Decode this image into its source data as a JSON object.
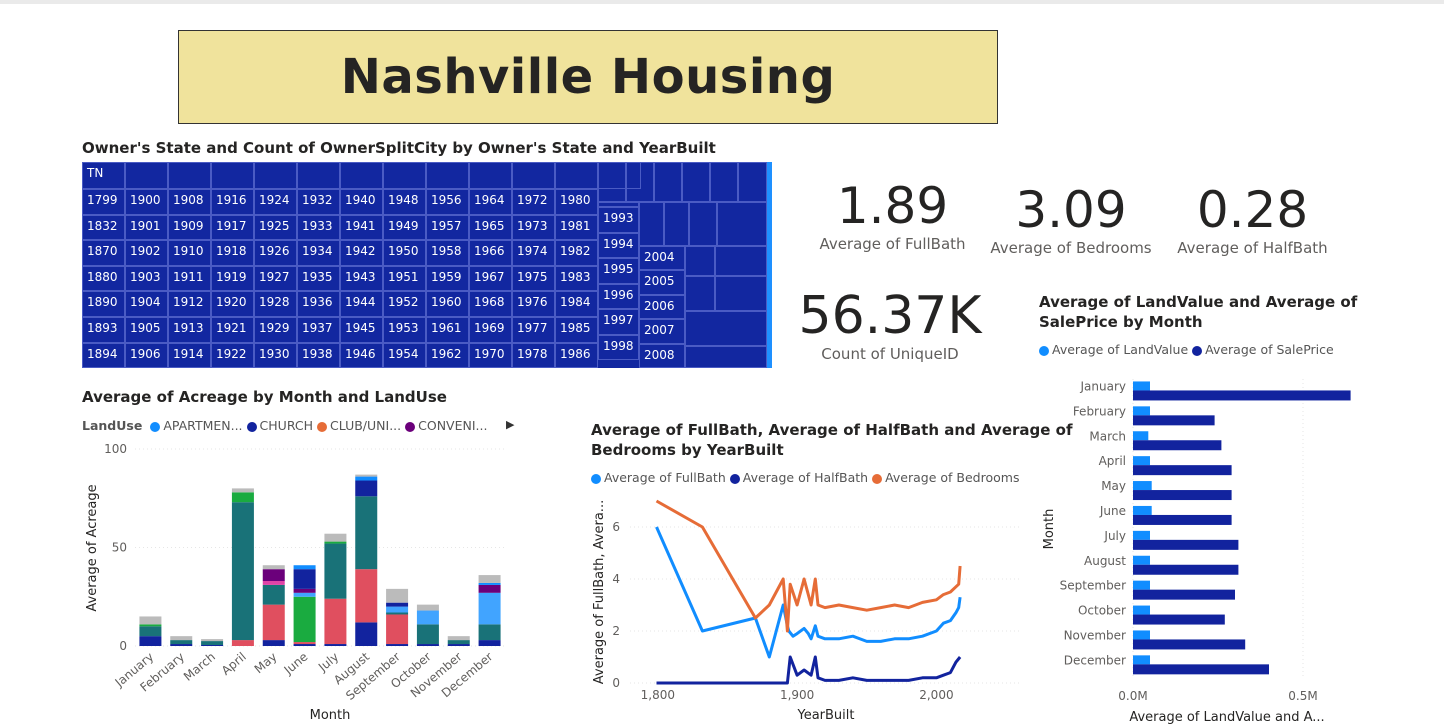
{
  "page": {
    "title": "Nashville Housing"
  },
  "treemap": {
    "title": "Owner's State and Count of OwnerSplitCity by Owner's State and YearBuilt",
    "state_label": "TN",
    "columns": [
      [
        "1799",
        "1832",
        "1870",
        "1880",
        "1890",
        "1893",
        "1894"
      ],
      [
        "1900",
        "1901",
        "1902",
        "1903",
        "1904",
        "1905",
        "1906"
      ],
      [
        "1908",
        "1909",
        "1910",
        "1911",
        "1912",
        "1913",
        "1914"
      ],
      [
        "1916",
        "1917",
        "1918",
        "1919",
        "1920",
        "1921",
        "1922"
      ],
      [
        "1924",
        "1925",
        "1926",
        "1927",
        "1928",
        "1929",
        "1930"
      ],
      [
        "1932",
        "1933",
        "1934",
        "1935",
        "1936",
        "1937",
        "1938"
      ],
      [
        "1940",
        "1941",
        "1942",
        "1943",
        "1944",
        "1945",
        "1946"
      ],
      [
        "1948",
        "1949",
        "1950",
        "1951",
        "1952",
        "1953",
        "1954"
      ],
      [
        "1956",
        "1957",
        "1958",
        "1959",
        "1960",
        "1961",
        "1962"
      ],
      [
        "1964",
        "1965",
        "1966",
        "1967",
        "1968",
        "1969",
        "1970"
      ],
      [
        "1972",
        "1973",
        "1974",
        "1975",
        "1976",
        "1977",
        "1978"
      ],
      [
        "1980",
        "1981",
        "1982",
        "1983",
        "1984",
        "1985",
        "1986"
      ]
    ],
    "col_b": [
      "1993",
      "1994",
      "1995",
      "1996",
      "1997",
      "1998"
    ],
    "col_c": [
      "2004",
      "2005",
      "2006",
      "2007",
      "2008"
    ]
  },
  "cards": [
    {
      "value": "1.89",
      "label": "Average of FullBath"
    },
    {
      "value": "3.09",
      "label": "Average of Bedrooms"
    },
    {
      "value": "0.28",
      "label": "Average of HalfBath"
    },
    {
      "value": "56.37K",
      "label": "Count of UniqueID"
    }
  ],
  "acreage_chart": {
    "title": "Average of Acreage by Month and LandUse",
    "legend_title": "LandUse",
    "legend": [
      {
        "name": "APARTMEN...",
        "color": "#118dff"
      },
      {
        "name": "CHURCH",
        "color": "#12239e"
      },
      {
        "name": "CLUB/UNI...",
        "color": "#e66c37"
      },
      {
        "name": "CONVENI...",
        "color": "#6b007b"
      }
    ],
    "ylabel": "Average of Acreage",
    "xlabel": "Month",
    "yticks": [
      "100",
      "50",
      "0"
    ]
  },
  "bath_chart": {
    "title_line1": "Average of FullBath, Average of HalfBath and Average of",
    "title_line2": "Bedrooms by YearBuilt",
    "legend": [
      {
        "name": "Average of FullBath",
        "color": "#118dff"
      },
      {
        "name": "Average of HalfBath",
        "color": "#12239e"
      },
      {
        "name": "Average of Bedrooms",
        "color": "#e66c37"
      }
    ],
    "ylabel": "Average of FullBath, Avera...",
    "xlabel": "YearBuilt",
    "yticks": [
      "6",
      "4",
      "2",
      "0"
    ],
    "xticks": [
      "1,800",
      "1,900",
      "2,000"
    ]
  },
  "land_chart": {
    "title_line1": "Average of LandValue and Average of",
    "title_line2": "SalePrice by Month",
    "legend": [
      {
        "name": "Average of LandValue",
        "color": "#118dff"
      },
      {
        "name": "Average of SalePrice",
        "color": "#12239e"
      }
    ],
    "ylabel": "Month",
    "xlabel": "Average of LandValue and A...",
    "xticks": [
      "0.0M",
      "0.5M"
    ]
  },
  "chart_data": [
    {
      "type": "bar",
      "stacked": true,
      "title": "Average of Acreage by Month and LandUse",
      "xlabel": "Month",
      "ylabel": "Average of Acreage",
      "ylim": [
        0,
        100
      ],
      "categories": [
        "January",
        "February",
        "March",
        "April",
        "May",
        "June",
        "July",
        "August",
        "September",
        "October",
        "November",
        "December"
      ],
      "series": [
        {
          "color": "#12239e",
          "values": [
            5,
            1,
            0.5,
            0,
            3,
            1,
            1,
            12,
            1,
            1,
            1,
            3
          ]
        },
        {
          "color": "#e04f5f",
          "values": [
            0,
            0,
            0,
            3,
            18,
            1,
            23,
            27,
            15,
            0,
            0,
            0
          ]
        },
        {
          "color": "#1aab40",
          "values": [
            0,
            0,
            0,
            0,
            0,
            23,
            0,
            0,
            0,
            0,
            0,
            0
          ]
        },
        {
          "color": "#197278",
          "values": [
            5,
            2,
            2,
            70,
            10,
            0,
            28,
            37,
            1,
            10,
            2,
            8
          ]
        },
        {
          "color": "#1aab40",
          "values": [
            1,
            0,
            0,
            5,
            0,
            0,
            1,
            0,
            0,
            0,
            0,
            0
          ]
        },
        {
          "color": "#41a4ff",
          "values": [
            0,
            0,
            0,
            0,
            0,
            2,
            0,
            0,
            3,
            7,
            0,
            16
          ]
        },
        {
          "color": "#e044a7",
          "values": [
            0,
            0,
            0,
            0,
            2,
            0,
            0,
            0,
            0,
            0,
            0,
            0
          ]
        },
        {
          "color": "#6b007b",
          "values": [
            0,
            0,
            0,
            0,
            6,
            2,
            0,
            0,
            0,
            0,
            0,
            4
          ]
        },
        {
          "color": "#12239e",
          "values": [
            0,
            0,
            0,
            0,
            0,
            10,
            0,
            8,
            2,
            0,
            0,
            0
          ]
        },
        {
          "color": "#118dff",
          "values": [
            0,
            0,
            0,
            0,
            0,
            2,
            0,
            2,
            0,
            0,
            0,
            1
          ]
        },
        {
          "color": "#bbbbbb",
          "values": [
            4,
            2,
            1,
            2,
            2,
            0,
            4,
            1,
            7,
            3,
            2,
            4
          ]
        }
      ]
    },
    {
      "type": "line",
      "title": "Average of FullBath, Average of HalfBath and Average of Bedrooms by YearBuilt",
      "xlabel": "YearBuilt",
      "ylabel": "Average of FullBath, Avera...",
      "xlim": [
        1780,
        2060
      ],
      "ylim": [
        0,
        7
      ],
      "series": [
        {
          "name": "Average of FullBath",
          "color": "#118dff",
          "x": [
            1799,
            1832,
            1870,
            1880,
            1890,
            1893,
            1894,
            1897,
            1900,
            1905,
            1908,
            1910,
            1913,
            1915,
            1920,
            1930,
            1940,
            1950,
            1960,
            1970,
            1980,
            1990,
            2000,
            2005,
            2010,
            2014,
            2016,
            2017
          ],
          "y": [
            6,
            2,
            2.5,
            1,
            3,
            2.2,
            2,
            1.8,
            1.9,
            2.1,
            1.9,
            1.7,
            2.2,
            1.8,
            1.7,
            1.7,
            1.8,
            1.6,
            1.6,
            1.7,
            1.7,
            1.8,
            2.0,
            2.3,
            2.4,
            2.7,
            2.9,
            3.3
          ]
        },
        {
          "name": "Average of HalfBath",
          "color": "#12239e",
          "x": [
            1799,
            1832,
            1870,
            1880,
            1890,
            1893,
            1895,
            1900,
            1905,
            1910,
            1913,
            1915,
            1920,
            1930,
            1940,
            1950,
            1960,
            1970,
            1980,
            1990,
            2000,
            2005,
            2010,
            2014,
            2017
          ],
          "y": [
            0,
            0,
            0,
            0,
            0,
            0,
            1,
            0.3,
            0.5,
            0.3,
            1,
            0.2,
            0.1,
            0.1,
            0.2,
            0.1,
            0.1,
            0.1,
            0.1,
            0.2,
            0.2,
            0.3,
            0.4,
            0.8,
            1.0
          ]
        },
        {
          "name": "Average of Bedrooms",
          "color": "#e66c37",
          "x": [
            1799,
            1832,
            1870,
            1880,
            1890,
            1893,
            1895,
            1900,
            1905,
            1910,
            1913,
            1915,
            1920,
            1930,
            1940,
            1950,
            1960,
            1970,
            1980,
            1990,
            2000,
            2005,
            2010,
            2014,
            2016,
            2017
          ],
          "y": [
            7,
            6,
            2.5,
            3,
            4,
            2,
            3.8,
            3,
            4,
            3,
            4,
            3,
            2.9,
            3,
            2.9,
            2.8,
            2.9,
            3,
            2.9,
            3.1,
            3.2,
            3.4,
            3.5,
            3.7,
            3.8,
            4.5
          ]
        }
      ]
    },
    {
      "type": "bar",
      "orientation": "horizontal",
      "title": "Average of LandValue and Average of SalePrice by Month",
      "ylabel": "Month",
      "xlabel": "Average of LandValue and A...",
      "xlim": [
        0,
        0.8
      ],
      "categories": [
        "January",
        "February",
        "March",
        "April",
        "May",
        "June",
        "July",
        "August",
        "September",
        "October",
        "November",
        "December"
      ],
      "series": [
        {
          "name": "Average of LandValue",
          "color": "#118dff",
          "values": [
            0.05,
            0.05,
            0.045,
            0.05,
            0.055,
            0.055,
            0.05,
            0.05,
            0.05,
            0.05,
            0.05,
            0.05
          ]
        },
        {
          "name": "Average of SalePrice",
          "color": "#12239e",
          "values": [
            0.64,
            0.24,
            0.26,
            0.29,
            0.29,
            0.29,
            0.31,
            0.31,
            0.3,
            0.27,
            0.33,
            0.4
          ]
        }
      ]
    }
  ]
}
